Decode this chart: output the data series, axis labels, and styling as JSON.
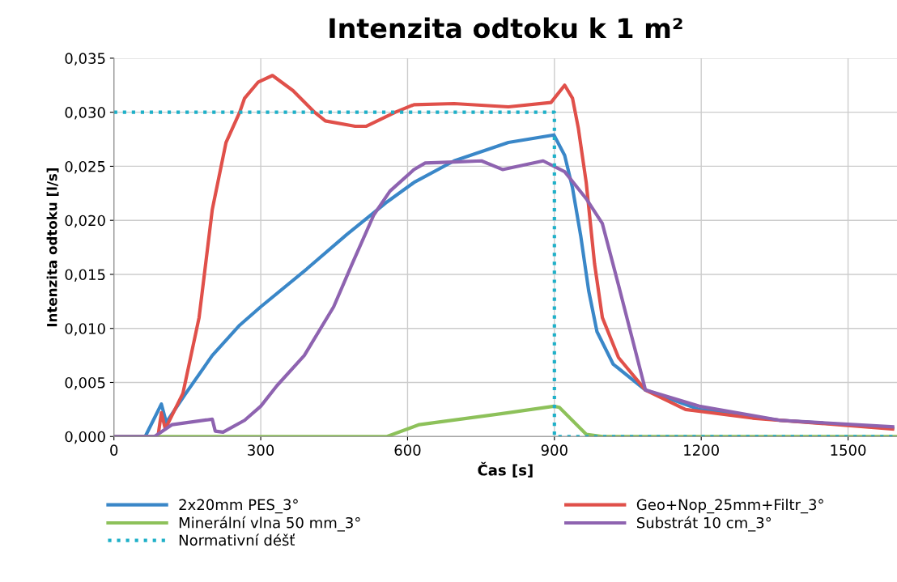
{
  "chart_data": {
    "type": "line",
    "title": "Intenzita odtoku k 1 m²",
    "xlabel": "Čas [s]",
    "ylabel": "Intenzita odtoku [l/s]",
    "xlim": [
      0,
      1600
    ],
    "xticks": [
      0,
      300,
      600,
      900,
      1200,
      1500
    ],
    "ylim": [
      0,
      0.035
    ],
    "yticks": [
      {
        "value": 0,
        "label": "0,000"
      },
      {
        "value": 0.005,
        "label": "0,005"
      },
      {
        "value": 0.01,
        "label": "0,010"
      },
      {
        "value": 0.015,
        "label": "0,015"
      },
      {
        "value": 0.02,
        "label": "0,020"
      },
      {
        "value": 0.025,
        "label": "0,025"
      },
      {
        "value": 0.03,
        "label": "0,030"
      },
      {
        "value": 0.035,
        "label": "0,035"
      }
    ],
    "grid": true,
    "legend": "bottom",
    "series": [
      {
        "name": "2x20mm PES_3°",
        "color": "#3a87c8",
        "x": [
          0,
          64,
          97,
          107,
          147,
          201,
          257,
          300,
          394,
          476,
          558,
          613,
          695,
          806,
          899,
          921,
          937,
          954,
          970,
          987,
          1020,
          1086,
          1196,
          1361,
          1591
        ],
        "values": [
          0,
          0,
          0.003,
          0.0013,
          0.004,
          0.0075,
          0.0103,
          0.012,
          0.0155,
          0.0187,
          0.0217,
          0.0235,
          0.0255,
          0.0272,
          0.0279,
          0.026,
          0.023,
          0.0185,
          0.0135,
          0.0097,
          0.0067,
          0.0043,
          0.0025,
          0.0015,
          0.0008
        ]
      },
      {
        "name": "Geo+Nop_25mm+Filtr_3°",
        "color": "#e0504a",
        "x": [
          0,
          90,
          97,
          105,
          141,
          174,
          201,
          229,
          257,
          267,
          295,
          324,
          366,
          410,
          432,
          493,
          515,
          575,
          613,
          695,
          806,
          893,
          921,
          937,
          949,
          965,
          982,
          998,
          1031,
          1086,
          1168,
          1305,
          1591
        ],
        "values": [
          0,
          0,
          0.0022,
          0.0007,
          0.004,
          0.011,
          0.021,
          0.0272,
          0.03,
          0.0313,
          0.0328,
          0.0334,
          0.032,
          0.03,
          0.0292,
          0.0287,
          0.0287,
          0.03,
          0.0307,
          0.0308,
          0.0305,
          0.0309,
          0.0325,
          0.0313,
          0.0285,
          0.0235,
          0.016,
          0.011,
          0.0073,
          0.0043,
          0.0025,
          0.0017,
          0.0007
        ]
      },
      {
        "name": "Minerální vlna 50 mm_3°",
        "color": "#8dc15a",
        "x": [
          0,
          558,
          624,
          806,
          899,
          910,
          965,
          998,
          1600
        ],
        "values": [
          0,
          0,
          0.0011,
          0.0022,
          0.0028,
          0.0027,
          0.0002,
          0,
          0
        ]
      },
      {
        "name": "Substrát 10 cm_3°",
        "color": "#8e63b0",
        "x": [
          0,
          83,
          119,
          201,
          207,
          223,
          267,
          300,
          333,
          389,
          449,
          487,
          531,
          564,
          613,
          636,
          695,
          751,
          794,
          877,
          921,
          965,
          998,
          1031,
          1086,
          1196,
          1361,
          1591
        ],
        "values": [
          0,
          0,
          0.0011,
          0.0016,
          0.0005,
          0.0004,
          0.0015,
          0.0028,
          0.0047,
          0.0075,
          0.012,
          0.016,
          0.0205,
          0.0227,
          0.0247,
          0.0253,
          0.0254,
          0.0255,
          0.0247,
          0.0255,
          0.0245,
          0.022,
          0.0197,
          0.014,
          0.0043,
          0.0028,
          0.0015,
          0.0009
        ]
      },
      {
        "name": "Normativní déšť",
        "color": "#1fb0c8",
        "line_style": "dotted",
        "x": [
          0,
          900,
          900,
          1600
        ],
        "values": [
          0.03,
          0.03,
          0,
          0
        ]
      }
    ]
  }
}
